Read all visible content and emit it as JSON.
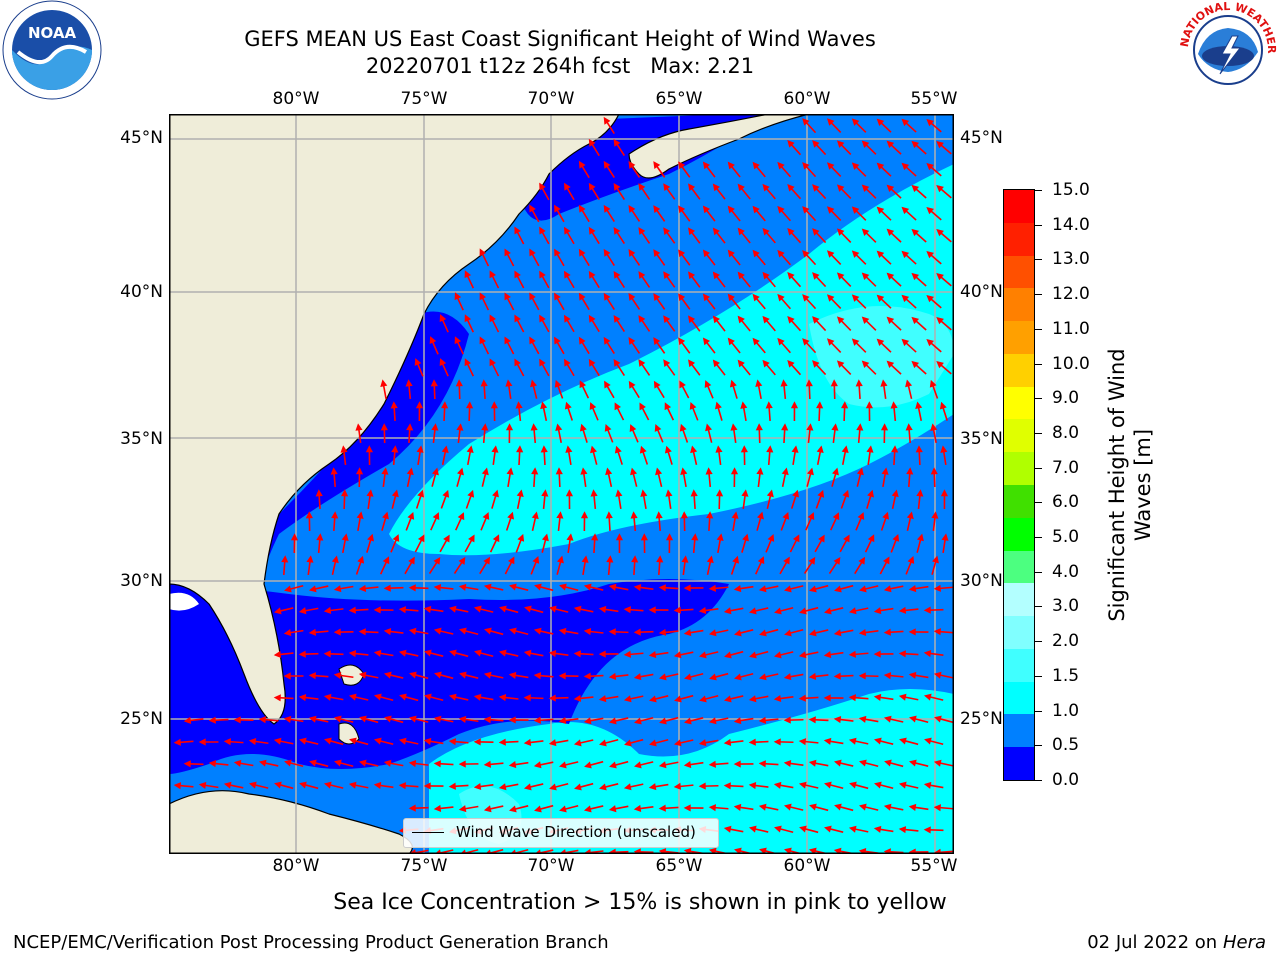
{
  "title_line1": "GEFS MEAN US East Coast Significant Height of Wind Waves",
  "title_line2": "20220701 t12z 264h fcst   Max: 2.21",
  "logos": {
    "left": "NOAA",
    "right": "NATIONAL WEATHER SERVICE"
  },
  "lon_labels": [
    "80°W",
    "75°W",
    "70°W",
    "65°W",
    "60°W",
    "55°W"
  ],
  "lat_labels": [
    "45°N",
    "40°N",
    "35°N",
    "30°N",
    "25°N"
  ],
  "legend_label": "Wind Wave Direction (unscaled)",
  "colorbar": {
    "label": "Significant Height of Wind Waves [m]",
    "ticks": [
      "15.0",
      "14.0",
      "13.0",
      "12.0",
      "11.0",
      "10.0",
      "9.0",
      "8.0",
      "7.0",
      "6.0",
      "5.0",
      "4.0",
      "3.0",
      "2.0",
      "1.5",
      "1.0",
      "0.5",
      "0.0"
    ],
    "colors": [
      "#0000ff",
      "#0080ff",
      "#00ffff",
      "#40ffff",
      "#80ffff",
      "#b3ffff",
      "#4cff80",
      "#00ff00",
      "#40e000",
      "#b0ff00",
      "#e0ff00",
      "#ffff00",
      "#ffd000",
      "#ffa000",
      "#ff8000",
      "#ff5000",
      "#ff2000",
      "#ff0000"
    ]
  },
  "colors": {
    "land": "#efedd9",
    "ocean_deep": "#0000ff",
    "ocean_mid": "#0080ff",
    "ocean_light": "#00ffff",
    "ocean_lighter": "#40ffff",
    "arrow": "#ff0000",
    "grid": "#b0b0b0"
  },
  "subtitle": "Sea Ice Concentration > 15% is shown in pink to yellow",
  "credit": "NCEP/EMC/Verification Post Processing Product Generation Branch",
  "date_prefix": "02 Jul 2022 on ",
  "date_host": "Hera"
}
